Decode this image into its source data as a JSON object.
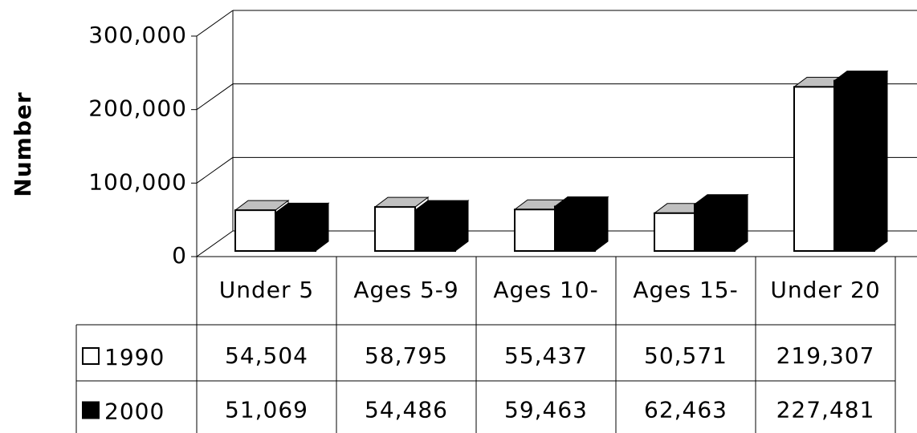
{
  "chart_data": {
    "type": "bar3d",
    "y_axis_label": "Number",
    "categories": [
      "Under 5",
      "Ages 5-9",
      "Ages 10-",
      "Ages 15-",
      "Under 20"
    ],
    "series": [
      {
        "name": "1990",
        "color": "#ffffff",
        "values": [
          54504,
          58795,
          55437,
          50571,
          219307
        ],
        "value_labels": [
          "54,504",
          "58,795",
          "55,437",
          "50,571",
          "219,307"
        ]
      },
      {
        "name": "2000",
        "color": "#000000",
        "values": [
          51069,
          54486,
          59463,
          62463,
          227481
        ],
        "value_labels": [
          "51,069",
          "54,486",
          "59,463",
          "62,463",
          "227,481"
        ]
      }
    ],
    "ylim": [
      0,
      300000
    ],
    "yticks": [
      {
        "value": 0,
        "label": "0"
      },
      {
        "value": 100000,
        "label": "100,000"
      },
      {
        "value": 200000,
        "label": "200,000"
      },
      {
        "value": 300000,
        "label": "300,000"
      }
    ],
    "grid": true
  }
}
